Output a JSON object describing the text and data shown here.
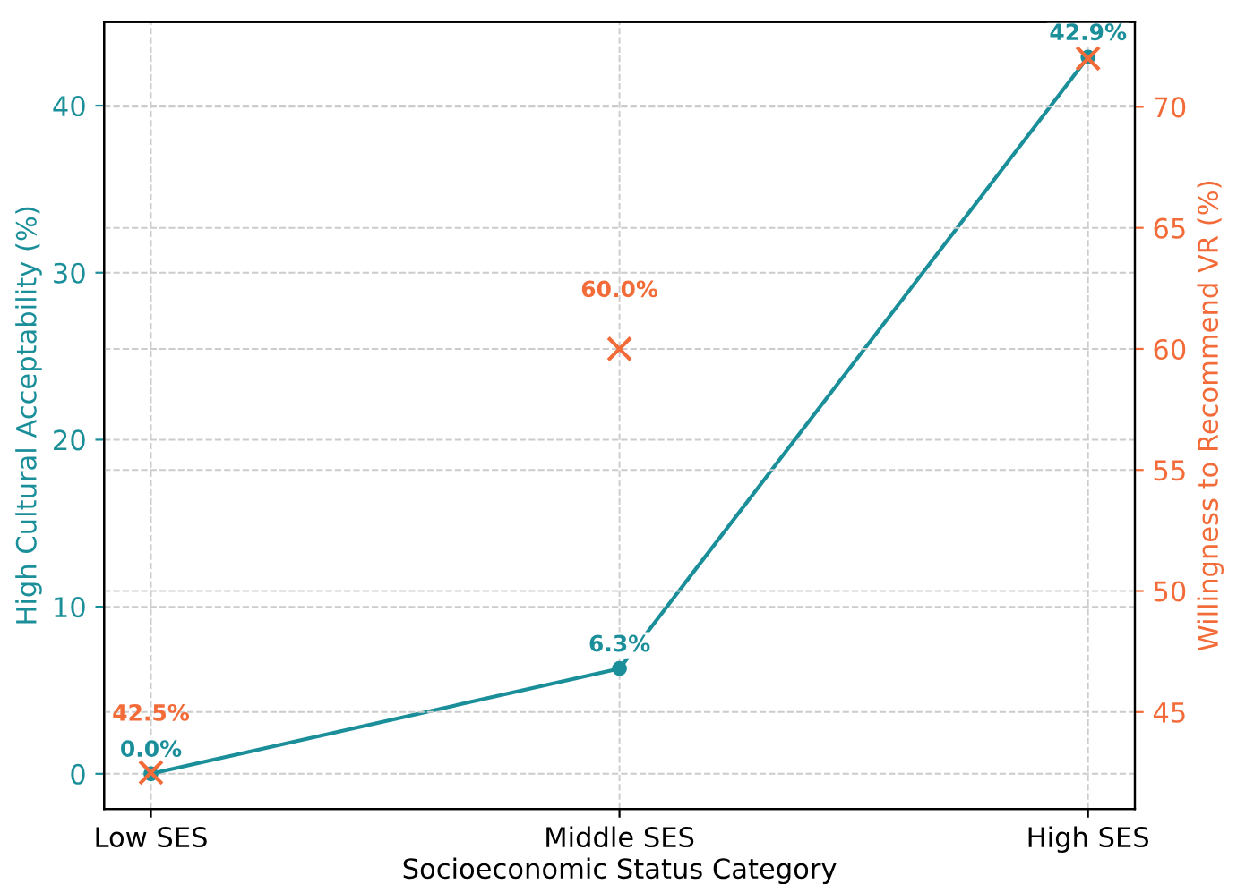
{
  "chart_data": {
    "type": "line",
    "categories": [
      "Low SES",
      "Middle SES",
      "High SES"
    ],
    "xlabel": "Socioeconomic Status Category",
    "ylabel": "High Cultural Acceptability (%)",
    "y2label": "Willingness to Recommend VR (%)",
    "ylim": [
      -2.1,
      45.0
    ],
    "yticks": [
      0,
      10,
      20,
      30,
      40
    ],
    "y2lim": [
      41.0,
      73.5
    ],
    "y2ticks": [
      45,
      50,
      55,
      60,
      65,
      70
    ],
    "grid": true,
    "series": [
      {
        "color": "#1a8f9a",
        "marker": "circle",
        "line_style": "solid",
        "values": [
          0.0,
          6.3,
          42.9
        ],
        "value_labels": [
          "0.0%",
          "6.3%",
          "42.9%"
        ]
      },
      {
        "type": "scatter",
        "axis": "y2",
        "color": "#f26b38",
        "marker": "cross",
        "values": [
          42.5,
          60.0,
          72.0
        ],
        "value_labels": [
          "42.5%",
          "60.0%",
          null
        ]
      }
    ]
  }
}
